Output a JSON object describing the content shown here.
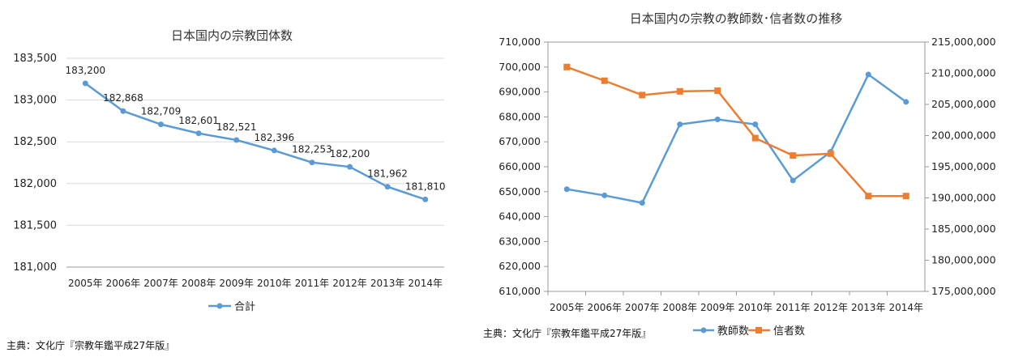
{
  "chart_data": [
    {
      "type": "line",
      "title": "日本国内の宗教団体数",
      "categories": [
        "2005年",
        "2006年",
        "2007年",
        "2008年",
        "2009年",
        "2010年",
        "2011年",
        "2012年",
        "2013年",
        "2014年"
      ],
      "ylim": [
        181000,
        183500
      ],
      "yticks": [
        "181,000",
        "181,500",
        "182,000",
        "182,500",
        "183,000",
        "183,500"
      ],
      "series": [
        {
          "name": "合計",
          "color": "#5b9bd5",
          "values": [
            183200,
            182868,
            182709,
            182601,
            182521,
            182396,
            182253,
            182200,
            181962,
            181810
          ],
          "labels": [
            "183,200",
            "182,868",
            "182,709",
            "182,601",
            "182,521",
            "182,396",
            "182,253",
            "182,200",
            "181,962",
            "181,810"
          ]
        }
      ],
      "legend": "bottom",
      "grid": true
    },
    {
      "type": "line",
      "title": "日本国内の宗教の教師数･信者数の推移",
      "categories": [
        "2005年",
        "2006年",
        "2007年",
        "2008年",
        "2009年",
        "2010年",
        "2011年",
        "2012年",
        "2013年",
        "2014年"
      ],
      "ylim_left": [
        610000,
        710000
      ],
      "ylim_right": [
        175000000,
        215000000
      ],
      "yticks_left": [
        "610,000",
        "620,000",
        "630,000",
        "640,000",
        "650,000",
        "660,000",
        "670,000",
        "680,000",
        "690,000",
        "700,000",
        "710,000"
      ],
      "yticks_right": [
        "175,000,000",
        "180,000,000",
        "185,000,000",
        "190,000,000",
        "195,000,000",
        "200,000,000",
        "205,000,000",
        "210,000,000",
        "215,000,000"
      ],
      "series": [
        {
          "name": "教師数",
          "color": "#5b9bd5",
          "axis": "left",
          "values": [
            651000,
            648500,
            645500,
            677000,
            679000,
            677000,
            654500,
            666000,
            697000,
            686000
          ]
        },
        {
          "name": "信者数",
          "color": "#ed7d31",
          "axis": "right",
          "values": [
            211000000,
            208800000,
            206500000,
            207100000,
            207200000,
            199600000,
            196800000,
            197100000,
            190300000,
            190300000
          ]
        }
      ],
      "legend": "bottom",
      "grid": false
    }
  ],
  "source_left": "主典：文化庁『宗教年鑑平成27年版』",
  "source_right": "主典：文化庁『宗教年鑑平成27年版』"
}
